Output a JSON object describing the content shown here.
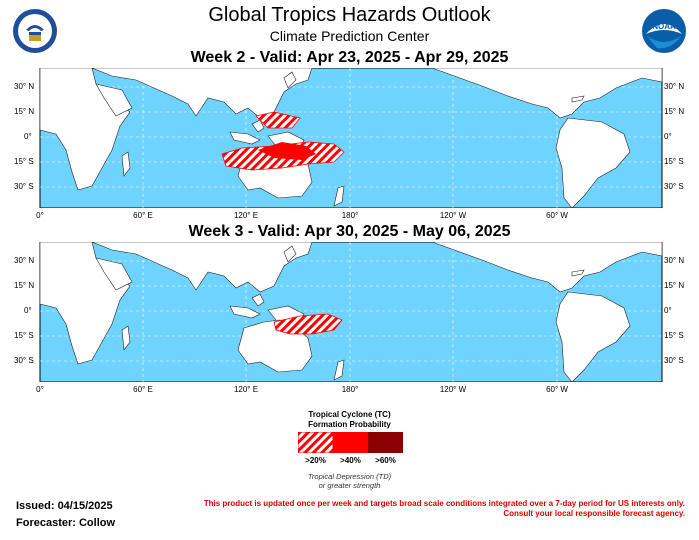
{
  "header": {
    "title": "Global Tropics Hazards Outlook",
    "subtitle": "Climate Prediction Center"
  },
  "week2": {
    "title": "Week 2 - Valid: Apr 23, 2025 - Apr 29, 2025"
  },
  "week3": {
    "title": "Week 3 - Valid: Apr 30, 2025 - May 06, 2025"
  },
  "axes": {
    "lon_labels": [
      "0°",
      "60° E",
      "120° E",
      "180°",
      "120° W",
      "60° W"
    ],
    "lat_labels_left": [
      "30° N",
      "15° N",
      "0°",
      "15° S",
      "30° S"
    ],
    "lat_labels_right": [
      "30° N",
      "15° N",
      "0°",
      "15° S",
      "30° S"
    ]
  },
  "legend": {
    "title_line1": "Tropical Cyclone (TC)",
    "title_line2": "Formation Probability",
    "categories": [
      ">20%",
      ">40%",
      ">60%"
    ],
    "colors": [
      "#ff0000",
      "#ff0000",
      "#8b0000"
    ],
    "note_line1": "Tropical Depression (TD)",
    "note_line2": "or greater strength"
  },
  "footer": {
    "issued": "Issued: 04/15/2025",
    "forecaster": "Forecaster: Collow",
    "disclaimer_line1": "This product is updated once per week and targets broad scale conditions integrated over a 7-day period for US interests only.",
    "disclaimer_line2": "Consult your local responsible forecast agency."
  },
  "colors": {
    "ocean": "#6fd3ff",
    "land": "#ffffff",
    "hazard": "#ff0000"
  }
}
